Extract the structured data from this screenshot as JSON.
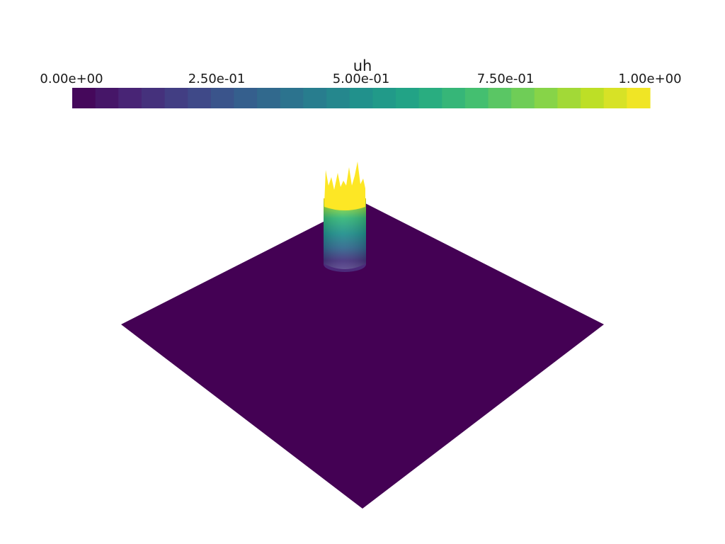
{
  "scalar_bar": {
    "title": "uh",
    "ticks": [
      "0.00e+00",
      "2.50e-01",
      "5.00e-01",
      "7.50e-01",
      "1.00e+00"
    ],
    "range": [
      0,
      1
    ],
    "num_bands": 25,
    "colormap": "viridis"
  },
  "scene": {
    "surface": "uh",
    "base_value": 0.0,
    "peak_value": 1.0,
    "base_color": "#440154",
    "peak_color": "#fde725",
    "background": "#ffffff"
  }
}
